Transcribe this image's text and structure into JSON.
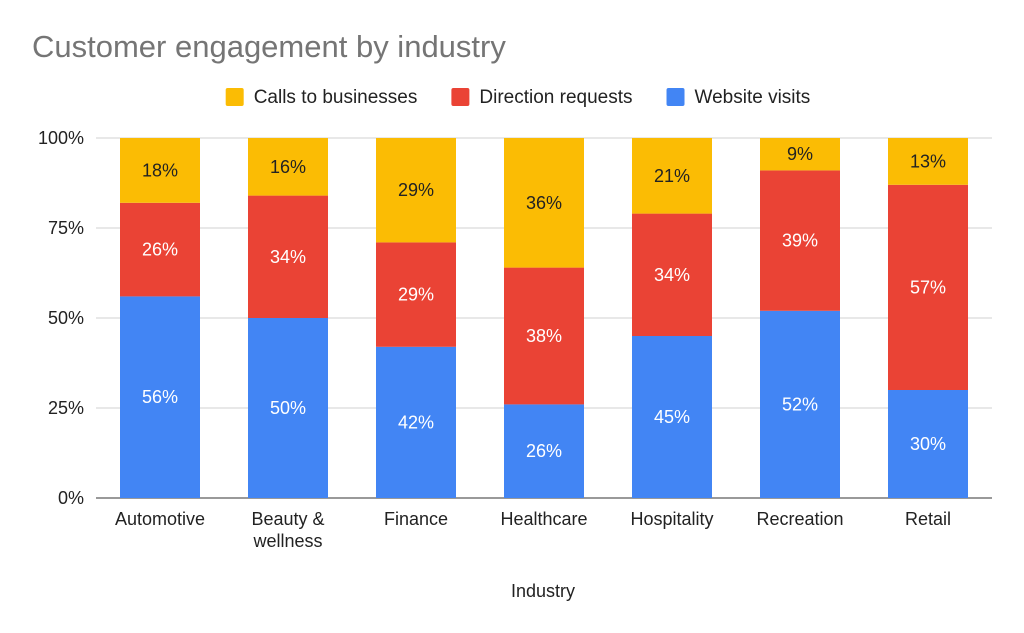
{
  "chart_data": {
    "type": "bar",
    "stacked": true,
    "percent_stacked": true,
    "title": "Customer engagement by industry",
    "xlabel": "Industry",
    "ylabel": "",
    "ylim": [
      0,
      100
    ],
    "yticks": [
      "0%",
      "25%",
      "50%",
      "75%",
      "100%"
    ],
    "ytick_values": [
      0,
      25,
      50,
      75,
      100
    ],
    "grid": true,
    "legend_position": "top",
    "categories": [
      [
        "Automotive"
      ],
      [
        "Beauty &",
        "wellness"
      ],
      [
        "Finance"
      ],
      [
        "Healthcare"
      ],
      [
        "Hospitality"
      ],
      [
        "Recreation"
      ],
      [
        "Retail"
      ]
    ],
    "series": [
      {
        "name": "Website visits",
        "color": "#4285f4",
        "label_color": "#ffffff",
        "values": [
          56,
          50,
          42,
          26,
          45,
          52,
          30
        ],
        "labels": [
          "56%",
          "50%",
          "42%",
          "26%",
          "45%",
          "52%",
          "30%"
        ]
      },
      {
        "name": "Direction requests",
        "color": "#ea4335",
        "label_color": "#ffffff",
        "values": [
          26,
          34,
          29,
          38,
          34,
          39,
          57
        ],
        "labels": [
          "26%",
          "34%",
          "29%",
          "38%",
          "34%",
          "39%",
          "57%"
        ]
      },
      {
        "name": "Calls to businesses",
        "color": "#fbbc04",
        "label_color": "#222222",
        "values": [
          18,
          16,
          29,
          36,
          21,
          9,
          13
        ],
        "labels": [
          "18%",
          "16%",
          "29%",
          "36%",
          "21%",
          "9%",
          "13%"
        ]
      }
    ],
    "legend_order": [
      "Calls to businesses",
      "Direction requests",
      "Website visits"
    ]
  }
}
